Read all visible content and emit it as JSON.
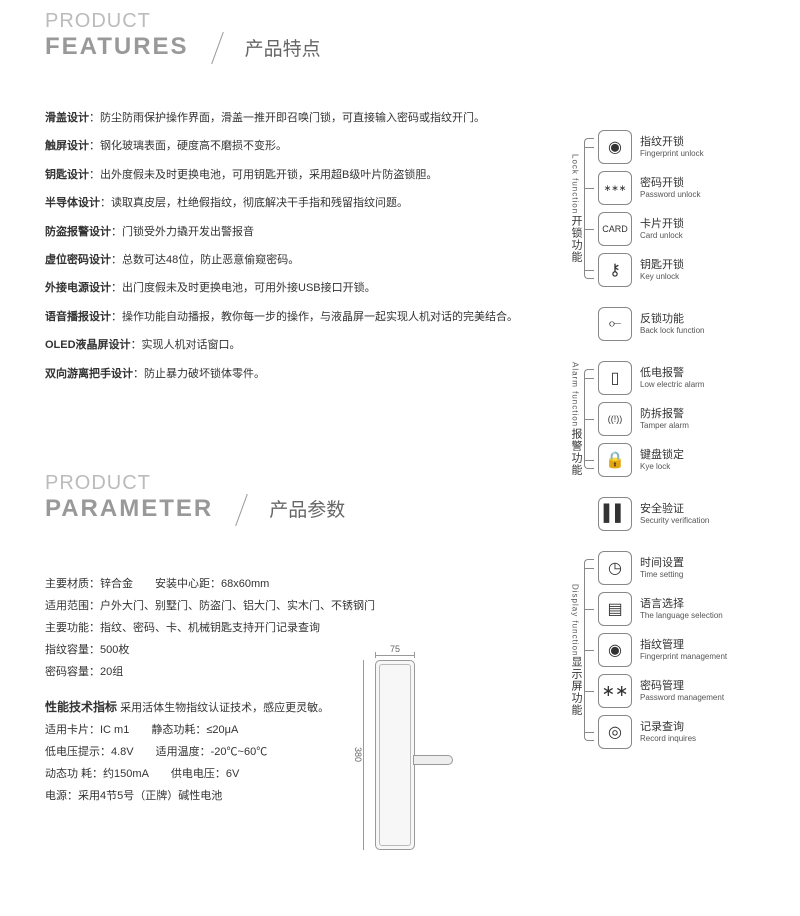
{
  "features_head": {
    "en1": "PRODUCT",
    "en2": "FEATURES",
    "cn": "产品特点"
  },
  "features": [
    {
      "t": "滑盖设计",
      "d": "：防尘防雨保护操作界面，滑盖一推开即召唤门锁，可直接输入密码或指纹开门。"
    },
    {
      "t": "触屏设计",
      "d": "：钢化玻璃表面，硬度高不磨损不变形。"
    },
    {
      "t": "钥匙设计",
      "d": "：出外度假未及时更换电池，可用钥匙开锁，采用超B级叶片防盗锁胆。"
    },
    {
      "t": "半导体设计",
      "d": "：读取真皮层，杜绝假指纹，彻底解决干手指和残留指纹问题。"
    },
    {
      "t": "防盗报警设计",
      "d": "：门锁受外力撬开发出警报音"
    },
    {
      "t": "虚位密码设计",
      "d": "：总数可达48位，防止恶意偷窥密码。"
    },
    {
      "t": "外接电源设计",
      "d": "：出门度假未及时更换电池，可用外接USB接口开锁。"
    },
    {
      "t": "语音播报设计",
      "d": "：操作功能自动播报，教你每一步的操作，与液晶屏一起实现人机对话的完美结合。"
    },
    {
      "t": "OLED液晶屏设计",
      "d": "：实现人机对话窗口。"
    },
    {
      "t": "双向游离把手设计",
      "d": "：防止暴力破坏锁体零件。"
    }
  ],
  "param_head": {
    "en1": "PRODUCT",
    "en2": "PARAMETER",
    "cn": "产品参数"
  },
  "params": {
    "l1a": "主要材质：锌合金",
    "l1b": "安装中心距：68x60mm",
    "l2": "适用范围：户外大门、别墅门、防盗门、铝大门、实木门、不锈钢门",
    "l3": "主要功能：指纹、密码、卡、机械钥匙支持开门记录查询",
    "l4": "指纹容量：500枚",
    "l5": "密码容量：20组",
    "perf_title": "性能技术指标",
    "perf_sub": " 采用活体生物指纹认证技术，感应更灵敏。",
    "p1a": "适用卡片：IC m1",
    "p1b": "静态功耗：≤20μA",
    "p2a": "低电压提示：4.8V",
    "p2b": "适用温度：-20℃~60℃",
    "p3a": "动态功 耗：约150mA",
    "p3b": "供电电压：6V",
    "p4": "电源：采用4节5号（正牌）碱性电池"
  },
  "dims": {
    "w": "75",
    "h": "380"
  },
  "groups": [
    {
      "cn": "开锁功能",
      "en": "Lock function",
      "items": [
        {
          "icon": "◉",
          "cn": "指纹开锁",
          "en": "Fingerprint unlock"
        },
        {
          "icon": "∗∗∗",
          "cn": "密码开锁",
          "en": "Password unlock"
        },
        {
          "icon": "CARD",
          "cn": "卡片开锁",
          "en": "Card unlock"
        },
        {
          "icon": "⚷",
          "cn": "钥匙开锁",
          "en": "Key unlock"
        }
      ]
    },
    {
      "standalone": true,
      "items": [
        {
          "icon": "⟜",
          "cn": "反锁功能",
          "en": "Back lock function"
        }
      ]
    },
    {
      "cn": "报警功能",
      "en": "Alarm function",
      "items": [
        {
          "icon": "▯",
          "cn": "低电报警",
          "en": "Low electric alarm"
        },
        {
          "icon": "((!))",
          "cn": "防拆报警",
          "en": "Tamper alarm"
        },
        {
          "icon": "🔒",
          "cn": "键盘锁定",
          "en": "Kye lock"
        }
      ]
    },
    {
      "standalone": true,
      "items": [
        {
          "icon": "▌▌",
          "cn": "安全验证",
          "en": "Security verification"
        }
      ]
    },
    {
      "cn": "显示屏功能",
      "en": "Display function",
      "items": [
        {
          "icon": "◷",
          "cn": "时间设置",
          "en": "Time setting"
        },
        {
          "icon": "▤",
          "cn": "语言选择",
          "en": "The language selection"
        },
        {
          "icon": "◉",
          "cn": "指纹管理",
          "en": "Fingerprint management"
        },
        {
          "icon": "∗∗",
          "cn": "密码管理",
          "en": "Password management"
        },
        {
          "icon": "◎",
          "cn": "记录查询",
          "en": "Record inquires"
        }
      ]
    }
  ]
}
